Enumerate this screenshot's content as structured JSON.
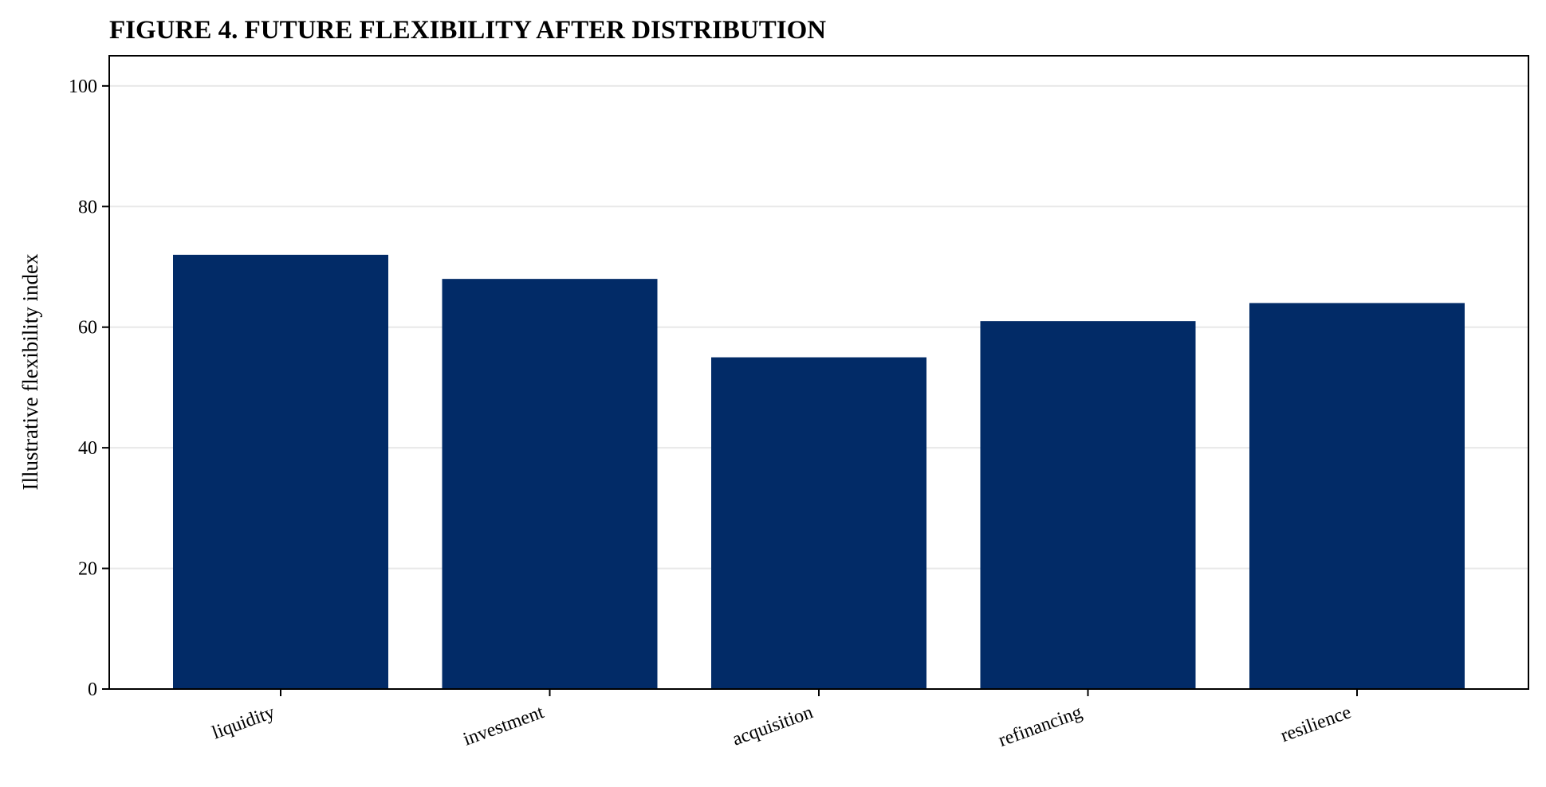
{
  "chart_data": {
    "type": "bar",
    "title": "FIGURE 4. FUTURE FLEXIBILITY AFTER DISTRIBUTION",
    "xlabel": "",
    "ylabel": "Illustrative flexibility index",
    "categories": [
      "liquidity",
      "investment",
      "acquisition",
      "refinancing",
      "resilience"
    ],
    "values": [
      72,
      68,
      55,
      61,
      64
    ],
    "ylim": [
      0,
      105
    ],
    "yticks": [
      0,
      20,
      40,
      60,
      80,
      100
    ],
    "grid": "horizontal",
    "legend": "none",
    "bar_color": "#022B67",
    "grid_color": "#E8E8E8"
  }
}
